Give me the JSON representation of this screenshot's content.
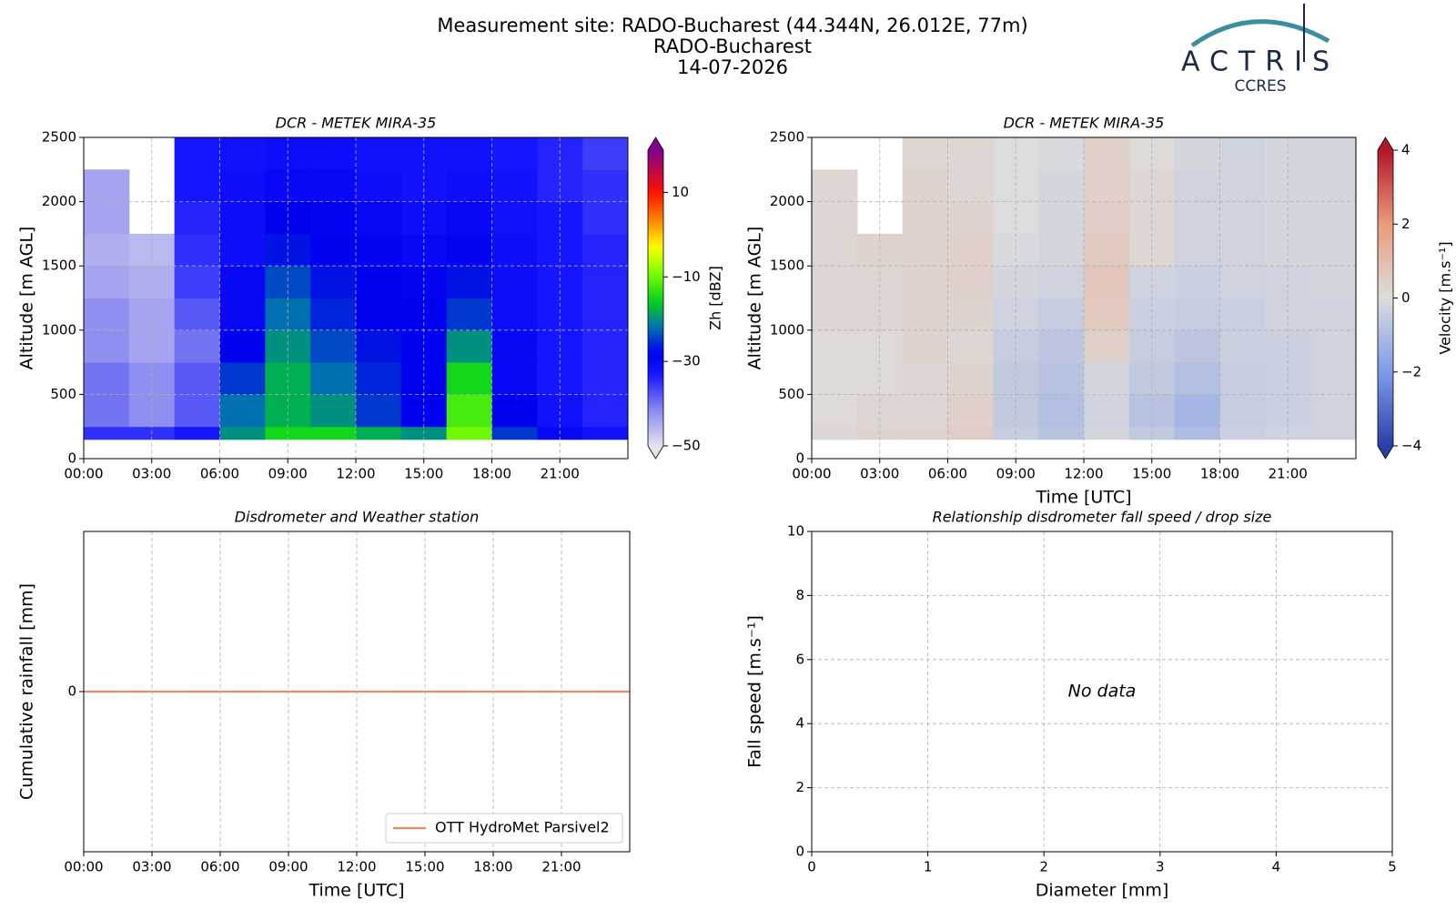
{
  "header": {
    "title": [
      "Measurement site: RADO-Bucharest (44.344N, 26.012E, 77m)",
      "RADO-Bucharest",
      "14-07-2026"
    ],
    "logo": "ACTRIS",
    "logo_sub": "CCRES"
  },
  "chart_data": [
    {
      "type": "heatmap",
      "title": "DCR - METEK MIRA-35",
      "ylabel": "Altitude [m AGL]",
      "xlim": [
        0,
        24
      ],
      "xticks": [
        {
          "value": 0,
          "label": "00:00"
        },
        {
          "value": 3,
          "label": "03:00"
        },
        {
          "value": 6,
          "label": "06:00"
        },
        {
          "value": 9,
          "label": "09:00"
        },
        {
          "value": 12,
          "label": "12:00"
        },
        {
          "value": 15,
          "label": "15:00"
        },
        {
          "value": 18,
          "label": "18:00"
        },
        {
          "value": 21,
          "label": "21:00"
        }
      ],
      "ylim": [
        0,
        2500
      ],
      "yticks": [
        0,
        500,
        1000,
        1500,
        2000,
        2500
      ],
      "grid": true,
      "x_edges": [
        0,
        2,
        4,
        6,
        8,
        10,
        12,
        14,
        16,
        18,
        20,
        22,
        24
      ],
      "y_edges": [
        150,
        250,
        500,
        750,
        1000,
        1250,
        1500,
        1750,
        2000,
        2250,
        2500
      ],
      "z": [
        [
          -35,
          -35,
          -33,
          -20,
          -15,
          -15,
          -18,
          -20,
          -10,
          -25,
          -30,
          -32
        ],
        [
          -40,
          -42,
          -38,
          -22,
          -18,
          -20,
          -25,
          -28,
          -12,
          -28,
          -32,
          -34
        ],
        [
          -40,
          -42,
          -38,
          -25,
          -18,
          -22,
          -26,
          -28,
          -15,
          -30,
          -33,
          -34
        ],
        [
          -42,
          -44,
          -40,
          -28,
          -20,
          -24,
          -27,
          -28,
          -20,
          -30,
          -33,
          -34
        ],
        [
          -42,
          -44,
          -38,
          -30,
          -22,
          -26,
          -28,
          -28,
          -25,
          -31,
          -33,
          -34
        ],
        [
          -44,
          -45,
          -36,
          -30,
          -24,
          -27,
          -28,
          -29,
          -27,
          -31,
          -33,
          -34
        ],
        [
          -45,
          -46,
          -35,
          -31,
          -27,
          -28,
          -29,
          -30,
          -29,
          -31,
          -33,
          -34
        ],
        [
          -44,
          null,
          -34,
          -31,
          -28,
          -29,
          -30,
          -31,
          -30,
          -32,
          -33,
          -35
        ],
        [
          -44,
          null,
          -33,
          -31,
          -30,
          -30,
          -31,
          -32,
          -31,
          -32,
          -34,
          -35
        ],
        [
          null,
          null,
          -33,
          -32,
          -31,
          -31,
          -32,
          -32,
          -32,
          -33,
          -34,
          -36
        ]
      ],
      "colorbar": {
        "label": "Zh [dBZ]",
        "lim": [
          -50,
          20
        ],
        "ticks": [
          {
            "value": -50,
            "label": "−50"
          },
          {
            "value": -30,
            "label": "−30"
          },
          {
            "value": -10,
            "label": "−10"
          },
          10
        ]
      }
    },
    {
      "type": "heatmap",
      "title": "DCR - METEK MIRA-35",
      "ylabel": "Altitude [m AGL]",
      "xlabel": "Time [UTC]",
      "xlim": [
        0,
        24
      ],
      "xticks": [
        {
          "value": 0,
          "label": "00:00"
        },
        {
          "value": 3,
          "label": "03:00"
        },
        {
          "value": 6,
          "label": "06:00"
        },
        {
          "value": 9,
          "label": "09:00"
        },
        {
          "value": 12,
          "label": "12:00"
        },
        {
          "value": 15,
          "label": "15:00"
        },
        {
          "value": 18,
          "label": "18:00"
        },
        {
          "value": 21,
          "label": "21:00"
        }
      ],
      "ylim": [
        0,
        2500
      ],
      "yticks": [
        0,
        500,
        1000,
        1500,
        2000,
        2500
      ],
      "grid": true,
      "x_edges": [
        0,
        2,
        4,
        6,
        8,
        10,
        12,
        14,
        16,
        18,
        20,
        22,
        24
      ],
      "y_edges": [
        150,
        250,
        500,
        750,
        1000,
        1250,
        1500,
        1750,
        2000,
        2250,
        2500
      ],
      "z": [
        [
          0.2,
          0.3,
          0.3,
          0.5,
          -0.5,
          -0.8,
          -0.2,
          -0.6,
          -1.0,
          -0.4,
          -0.3,
          -0.3
        ],
        [
          0.1,
          0.2,
          0.2,
          0.4,
          -0.6,
          -0.9,
          -0.3,
          -0.8,
          -1.2,
          -0.5,
          -0.4,
          -0.3
        ],
        [
          0.1,
          0.1,
          0.2,
          0.3,
          -0.6,
          -0.8,
          -0.2,
          -0.6,
          -0.9,
          -0.5,
          -0.4,
          -0.3
        ],
        [
          0.1,
          0.1,
          0.3,
          0.2,
          -0.5,
          -0.7,
          0.4,
          -0.5,
          -0.7,
          -0.4,
          -0.4,
          -0.3
        ],
        [
          0.2,
          0.2,
          0.3,
          0.3,
          -0.3,
          -0.5,
          0.6,
          -0.4,
          -0.5,
          -0.4,
          -0.3,
          -0.3
        ],
        [
          0.2,
          0.2,
          0.3,
          0.4,
          -0.2,
          -0.3,
          0.7,
          -0.3,
          -0.4,
          -0.3,
          -0.3,
          -0.2
        ],
        [
          0.2,
          0.3,
          0.3,
          0.4,
          -0.1,
          -0.2,
          0.6,
          0.2,
          -0.3,
          -0.3,
          -0.2,
          -0.2
        ],
        [
          0.2,
          null,
          0.3,
          0.3,
          0,
          -0.2,
          0.5,
          0.2,
          -0.3,
          -0.3,
          -0.2,
          -0.2
        ],
        [
          0.2,
          null,
          0.3,
          0.2,
          0,
          -0.2,
          0.4,
          0.2,
          -0.3,
          -0.3,
          -0.2,
          -0.2
        ],
        [
          null,
          null,
          0.2,
          0.2,
          0,
          -0.1,
          0.4,
          0.1,
          -0.2,
          -0.3,
          -0.2,
          -0.2
        ]
      ],
      "colorbar": {
        "label": "Velocity [m.s⁻¹]",
        "lim": [
          -4,
          4
        ],
        "ticks": [
          {
            "value": -4,
            "label": "−4"
          },
          {
            "value": -2,
            "label": "−2"
          },
          0,
          2,
          4
        ]
      }
    },
    {
      "type": "line",
      "title": "Disdrometer and Weather station",
      "ylabel": "Cumulative rainfall [mm]",
      "xlabel": "Time [UTC]",
      "xlim": [
        0,
        24
      ],
      "xticks": [
        {
          "value": 0,
          "label": "00:00"
        },
        {
          "value": 3,
          "label": "03:00"
        },
        {
          "value": 6,
          "label": "06:00"
        },
        {
          "value": 9,
          "label": "09:00"
        },
        {
          "value": 12,
          "label": "12:00"
        },
        {
          "value": 15,
          "label": "15:00"
        },
        {
          "value": 18,
          "label": "18:00"
        },
        {
          "value": 21,
          "label": "21:00"
        }
      ],
      "ylim": [
        -0.05,
        0.05
      ],
      "yticks": [
        0
      ],
      "grid": true,
      "legend": "lower right",
      "x": [
        0,
        24
      ],
      "series": [
        {
          "name": "OTT HydroMet Parsivel2",
          "color": "#ef8a5b",
          "values": [
            0,
            0
          ]
        }
      ]
    },
    {
      "type": "scatter",
      "title": "Relationship disdrometer fall speed / drop size",
      "ylabel": "Fall speed [m.s⁻¹]",
      "xlabel": "Diameter [mm]",
      "xlim": [
        0,
        5
      ],
      "xticks": [
        0,
        1,
        2,
        3,
        4,
        5
      ],
      "ylim": [
        0,
        10
      ],
      "yticks": [
        0,
        2,
        4,
        6,
        8,
        10
      ],
      "grid": true,
      "x": [],
      "values": [],
      "annotation": "No data"
    }
  ]
}
